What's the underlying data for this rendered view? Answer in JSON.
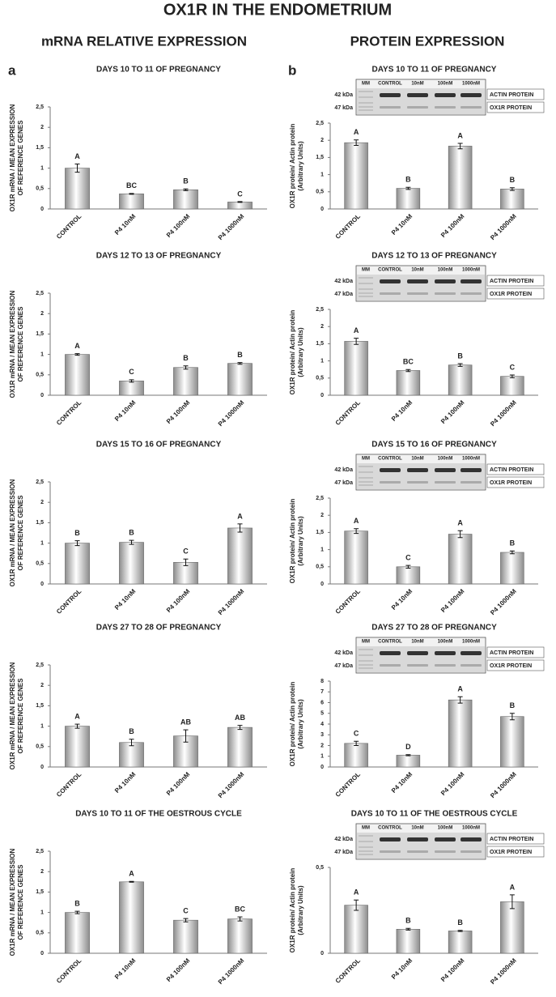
{
  "title": "OX1R IN THE ENDOMETRIUM",
  "sections": [
    "mRNA RELATIVE EXPRESSION",
    "PROTEIN EXPRESSION"
  ],
  "panel_labels": [
    "a",
    "b"
  ],
  "chart_data": [
    {
      "type": "bar",
      "title": "DAYS 10 TO 11 OF PREGNANCY",
      "categories": [
        "CONTROL",
        "P4 10nM",
        "P4 100nM",
        "P4 1000nM"
      ],
      "values": [
        1.0,
        0.37,
        0.47,
        0.17
      ],
      "errors": [
        0.1,
        0.01,
        0.02,
        0.01
      ],
      "letters": [
        "A",
        "BC",
        "B",
        "C"
      ],
      "color": "#8c8c8c",
      "ylabel": [
        "OX1R mRNA / MEAN EXPRESSION",
        "OF REFERENCE GENES"
      ],
      "ylim": [
        0,
        2.5
      ],
      "yticks": [
        0,
        {
          "value": 0.5,
          "label": "0,5"
        },
        1,
        {
          "value": 1.5,
          "label": "1,5"
        },
        2,
        {
          "value": 2.5,
          "label": "2,5"
        }
      ]
    },
    {
      "type": "bar",
      "title": "DAYS 12 TO 13 OF PREGNANCY",
      "categories": [
        "CONTROL",
        "P4 10nM",
        "P4 100nM",
        "P4 1000nM"
      ],
      "values": [
        1.0,
        0.35,
        0.68,
        0.78
      ],
      "errors": [
        0.02,
        0.03,
        0.04,
        0.02
      ],
      "letters": [
        "A",
        "C",
        "B",
        "B"
      ],
      "color": "#8c8c8c",
      "ylabel": [
        "OX1R mRNA / MEAN EXPRESSION",
        "OF REFERENCE GENES"
      ],
      "ylim": [
        0,
        2.5
      ],
      "yticks": [
        0,
        {
          "value": 0.5,
          "label": "0,5"
        },
        1,
        {
          "value": 1.5,
          "label": "1,5"
        },
        2,
        {
          "value": 2.5,
          "label": "2,5"
        }
      ]
    },
    {
      "type": "bar",
      "title": "DAYS 15 TO 16 OF PREGNANCY",
      "categories": [
        "CONTROL",
        "P4 10nM",
        "P4 100nM",
        "P4 1000nM"
      ],
      "values": [
        1.0,
        1.02,
        0.53,
        1.37
      ],
      "errors": [
        0.06,
        0.05,
        0.08,
        0.1
      ],
      "letters": [
        "B",
        "B",
        "C",
        "A"
      ],
      "color": "#8c8c8c",
      "ylabel": [
        "OX1R mRNA / MEAN EXPRESSION",
        "OF REFERENCE GENES"
      ],
      "ylim": [
        0,
        2.5
      ],
      "yticks": [
        0,
        {
          "value": 0.5,
          "label": "0,5"
        },
        1,
        {
          "value": 1.5,
          "label": "1,5"
        },
        2,
        {
          "value": 2.5,
          "label": "2,5"
        }
      ]
    },
    {
      "type": "bar",
      "title": "DAYS 27 TO 28 OF PREGNANCY",
      "categories": [
        "CONTROL",
        "P4 10nM",
        "P4 100nM",
        "P4 1000nM"
      ],
      "values": [
        1.0,
        0.6,
        0.76,
        0.97
      ],
      "errors": [
        0.05,
        0.08,
        0.15,
        0.05
      ],
      "letters": [
        "A",
        "B",
        "AB",
        "AB"
      ],
      "color": "#8c8c8c",
      "ylabel": [
        "OX1R mRNA / MEAN EXPRESSION",
        "OF REFERENCE GENES"
      ],
      "ylim": [
        0,
        2.5
      ],
      "yticks": [
        0,
        {
          "value": 0.5,
          "label": "0,5"
        },
        1,
        {
          "value": 1.5,
          "label": "1,5"
        },
        2,
        {
          "value": 2.5,
          "label": "2,5"
        }
      ]
    },
    {
      "type": "bar",
      "title": "DAYS 10 TO 11 OF THE OESTROUS CYCLE",
      "categories": [
        "CONTROL",
        "P4 10nM",
        "P4 100nM",
        "P4 1000nM"
      ],
      "values": [
        1.0,
        1.75,
        0.81,
        0.84
      ],
      "errors": [
        0.03,
        0.01,
        0.04,
        0.05
      ],
      "letters": [
        "B",
        "A",
        "C",
        "BC"
      ],
      "color": "#8c8c8c",
      "ylabel": [
        "OX1R mRNA / MEAN EXPRESSION",
        "OF REFERENCE GENES"
      ],
      "ylim": [
        0,
        2.5
      ],
      "yticks": [
        0,
        {
          "value": 0.5,
          "label": "0,5"
        },
        1,
        {
          "value": 1.5,
          "label": "1,5"
        },
        2,
        {
          "value": 2.5,
          "label": "2,5"
        }
      ]
    },
    {
      "type": "bar",
      "title": "DAYS 10 TO 11 OF PREGNANCY",
      "categories": [
        "CONTROL",
        "P4 10nM",
        "P4 100nM",
        "P4 1000nM"
      ],
      "values": [
        1.93,
        0.6,
        1.83,
        0.58
      ],
      "errors": [
        0.08,
        0.03,
        0.08,
        0.04
      ],
      "letters": [
        "A",
        "B",
        "A",
        "B"
      ],
      "color": "#8c8c8c",
      "ylabel": [
        "OX1R protein/ Actin protein",
        "(Arbitrary Units)"
      ],
      "ylim": [
        0,
        2.5
      ],
      "yticks": [
        0,
        {
          "value": 0.5,
          "label": "0,5"
        },
        1,
        {
          "value": 1.5,
          "label": "1,5"
        },
        2,
        {
          "value": 2.5,
          "label": "2,5"
        }
      ],
      "blot": {
        "lanes": [
          "MM",
          "CONTROL",
          "10nM",
          "100nM",
          "1000nM"
        ],
        "markers": [
          "42 kDa",
          "47 kDa"
        ],
        "proteins": [
          "ACTIN PROTEIN",
          "OX1R PROTEIN"
        ]
      }
    },
    {
      "type": "bar",
      "title": "DAYS 12 TO 13 OF PREGNANCY",
      "categories": [
        "CONTROL",
        "P4 10nM",
        "P4 100nM",
        "P4 1000nM"
      ],
      "values": [
        1.57,
        0.72,
        0.88,
        0.55
      ],
      "errors": [
        0.09,
        0.03,
        0.04,
        0.04
      ],
      "letters": [
        "A",
        "BC",
        "B",
        "C"
      ],
      "color": "#8c8c8c",
      "ylabel": [
        "OX1R protein/ Actin protein",
        "(Arbitrary Units)"
      ],
      "ylim": [
        0,
        2.5
      ],
      "yticks": [
        0,
        {
          "value": 0.5,
          "label": "0,5"
        },
        1,
        {
          "value": 1.5,
          "label": "1,5"
        },
        2,
        {
          "value": 2.5,
          "label": "2,5"
        }
      ],
      "blot": {
        "lanes": [
          "MM",
          "CONTROL",
          "10nM",
          "100nM",
          "1000nM"
        ],
        "markers": [
          "42 kDa",
          "47 kDa"
        ],
        "proteins": [
          "ACTIN PROTEIN",
          "OX1R PROTEIN"
        ]
      }
    },
    {
      "type": "bar",
      "title": "DAYS 15 TO 16 OF PREGNANCY",
      "categories": [
        "CONTROL",
        "P4 10nM",
        "P4 100nM",
        "P4 1000nM"
      ],
      "values": [
        1.54,
        0.5,
        1.45,
        0.92
      ],
      "errors": [
        0.07,
        0.04,
        0.1,
        0.04
      ],
      "letters": [
        "A",
        "C",
        "A",
        "B"
      ],
      "color": "#8c8c8c",
      "ylabel": [
        "OX1R protein/ Actin protein",
        "(Arbitrary Units)"
      ],
      "ylim": [
        0,
        2.5
      ],
      "yticks": [
        0,
        {
          "value": 0.5,
          "label": "0,5"
        },
        1,
        {
          "value": 1.5,
          "label": "1,5"
        },
        2,
        {
          "value": 2.5,
          "label": "2,5"
        }
      ],
      "blot": {
        "lanes": [
          "MM",
          "CONTROL",
          "10nM",
          "100nM",
          "1000nM"
        ],
        "markers": [
          "42 kDa",
          "47 kDa"
        ],
        "proteins": [
          "ACTIN PROTEIN",
          "OX1R PROTEIN"
        ]
      }
    },
    {
      "type": "bar",
      "title": "DAYS 27 TO 28 OF PREGNANCY",
      "categories": [
        "CONTROL",
        "P4 10nM",
        "P4 100nM",
        "P4 1000nM"
      ],
      "values": [
        2.2,
        1.1,
        6.25,
        4.7
      ],
      "errors": [
        0.2,
        0.05,
        0.3,
        0.3
      ],
      "letters": [
        "C",
        "D",
        "A",
        "B"
      ],
      "color": "#8c8c8c",
      "ylabel": [
        "OX1R protein/ Actin protein",
        "(Arbitrary Units)"
      ],
      "ylim": [
        0,
        8
      ],
      "yticks": [
        0,
        1,
        2,
        3,
        4,
        5,
        6,
        7,
        8
      ],
      "blot": {
        "lanes": [
          "MM",
          "CONTROL",
          "10nM",
          "100nM",
          "1000nM"
        ],
        "markers": [
          "42 kDa",
          "47 kDa"
        ],
        "proteins": [
          "ACTIN PROTEIN",
          "OX1R PROTEIN"
        ]
      }
    },
    {
      "type": "bar",
      "title": "DAYS 10 TO 11 OF THE OESTROUS CYCLE",
      "categories": [
        "CONTROL",
        "P4 10nM",
        "P4 100nM",
        "P4 1000nM"
      ],
      "values": [
        0.28,
        0.14,
        0.13,
        0.3
      ],
      "errors": [
        0.03,
        0.005,
        0.003,
        0.04
      ],
      "letters": [
        "A",
        "B",
        "B",
        "A"
      ],
      "color": "#8c8c8c",
      "ylabel": [
        "OX1R protein/ Actin protein",
        "(Arbitrary Units)"
      ],
      "ylim": [
        0,
        0.5
      ],
      "yticks": [
        0,
        {
          "value": 0.5,
          "label": "0,5"
        }
      ],
      "blot": {
        "lanes": [
          "MM",
          "CONTROL",
          "10nM",
          "100nM",
          "1000nM"
        ],
        "markers": [
          "42 kDa",
          "47 kDa"
        ],
        "proteins": [
          "ACTIN PROTEIN",
          "OX1R PROTEIN"
        ]
      }
    }
  ]
}
